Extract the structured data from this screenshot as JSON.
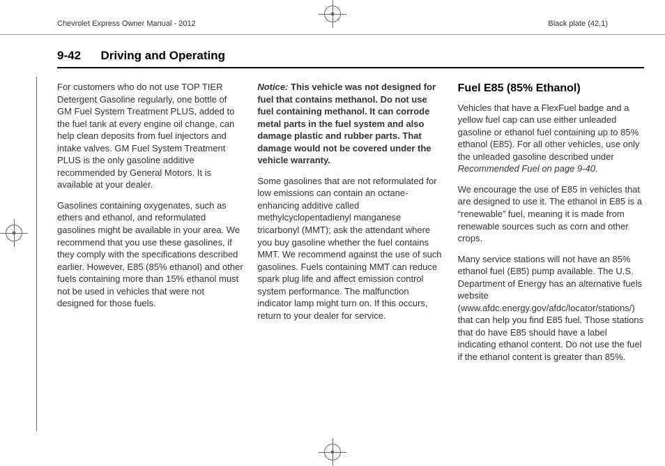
{
  "header": {
    "left": "Chevrolet Express Owner Manual - 2012",
    "right": "Black plate (42,1)"
  },
  "page": {
    "number": "9-42",
    "section": "Driving and Operating"
  },
  "col1": {
    "p1": "For customers who do not use TOP TIER Detergent Gasoline regularly, one bottle of GM Fuel System Treatment PLUS, added to the fuel tank at every engine oil change, can help clean deposits from fuel injectors and intake valves. GM Fuel System Treatment PLUS is the only gasoline additive recommended by General Motors. It is available at your dealer.",
    "p2": "Gasolines containing oxygenates, such as ethers and ethanol, and reformulated gasolines might be available in your area. We recommend that you use these gasolines, if they comply with the specifications described earlier. However, E85 (85% ethanol) and other fuels containing more than 15% ethanol must not be used in vehicles that were not designed for those fuels."
  },
  "col2": {
    "notice_label": "Notice:",
    "notice_text": "This vehicle was not designed for fuel that contains methanol. Do not use fuel containing methanol. It can corrode metal parts in the fuel system and also damage plastic and rubber parts. That damage would not be covered under the vehicle warranty.",
    "p2": "Some gasolines that are not reformulated for low emissions can contain an octane-enhancing additive called methylcyclopentadienyl manganese tricarbonyl (MMT); ask the attendant where you buy gasoline whether the fuel contains MMT. We recommend against the use of such gasolines. Fuels containing MMT can reduce spark plug life and affect emission control system performance. The malfunction indicator lamp might turn on. If this occurs, return to your dealer for service."
  },
  "col3": {
    "heading": "Fuel E85 (85% Ethanol)",
    "p1a": "Vehicles that have a FlexFuel badge and a yellow fuel cap can use either unleaded gasoline or ethanol fuel containing up to 85% ethanol (E85). For all other vehicles, use only the unleaded gasoline described under ",
    "p1_ref": "Recommended Fuel on page 9-40",
    "p1b": ".",
    "p2": "We encourage the use of E85 in vehicles that are designed to use it. The ethanol in E85 is a “renewable” fuel, meaning it is made from renewable sources such as corn and other crops.",
    "p3": "Many service stations will not have an 85% ethanol fuel (E85) pump available. The U.S. Department of Energy has an alternative fuels website (www.afdc.energy.gov/afdc/locator/stations/) that can help you find E85 fuel. Those stations that do have E85 should have a label indicating ethanol content. Do not use the fuel if the ethanol content is greater than 85%."
  }
}
